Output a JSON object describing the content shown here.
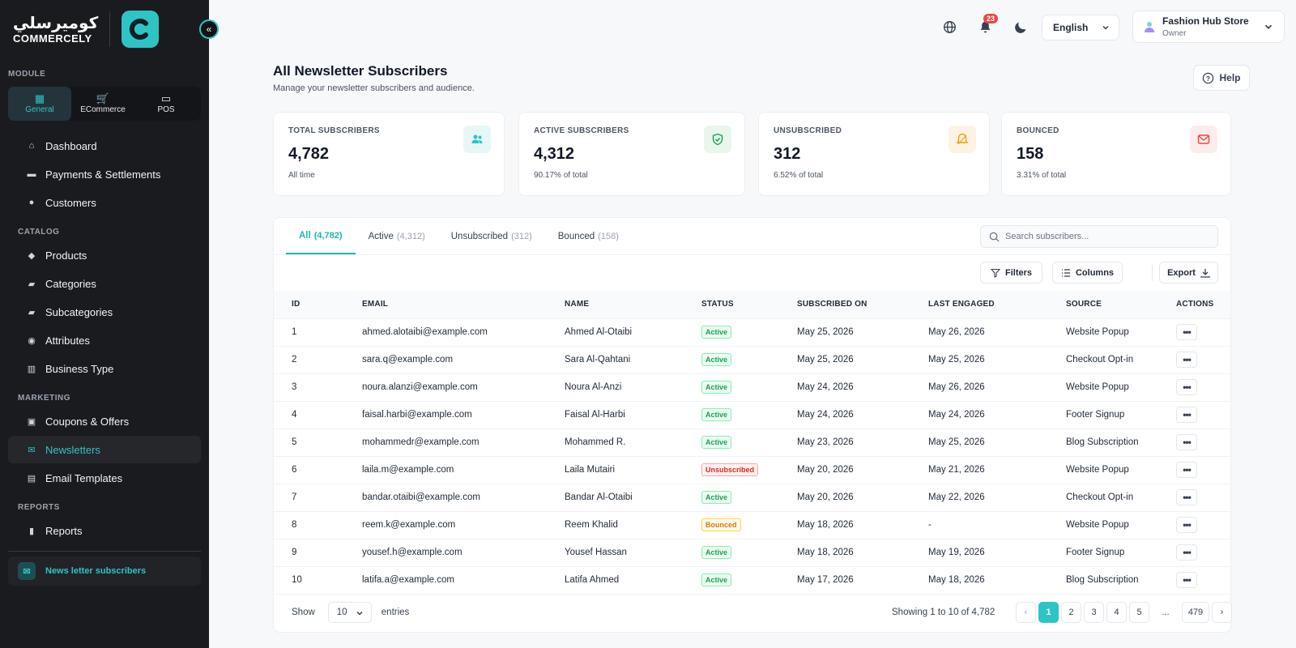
{
  "brand": {
    "arabic": "كوميرسلي",
    "name": "COMMERCELY",
    "logo_letter": "C"
  },
  "sidebar": {
    "module_label": "MODULE",
    "modules": [
      {
        "label": "General",
        "icon": "grid-icon",
        "active": true
      },
      {
        "label": "ECommerce",
        "icon": "cart-icon",
        "active": false
      },
      {
        "label": "POS",
        "icon": "register-icon",
        "active": false
      }
    ],
    "sections": [
      {
        "label": "",
        "items": [
          {
            "label": "Dashboard",
            "icon": "home-icon"
          },
          {
            "label": "Payments & Settlements",
            "icon": "card-icon"
          },
          {
            "label": "Customers",
            "icon": "user-icon"
          }
        ]
      },
      {
        "label": "CATALOG",
        "items": [
          {
            "label": "Products",
            "icon": "box-icon"
          },
          {
            "label": "Categories",
            "icon": "folder-icon"
          },
          {
            "label": "Subcategories",
            "icon": "folder-icon"
          },
          {
            "label": "Attributes",
            "icon": "attribute-icon"
          },
          {
            "label": "Business Type",
            "icon": "building-icon"
          }
        ]
      },
      {
        "label": "MARKETING",
        "items": [
          {
            "label": "Coupons & Offers",
            "icon": "gift-icon"
          },
          {
            "label": "Newsletters",
            "icon": "mail-icon",
            "active": true
          },
          {
            "label": "Email Templates",
            "icon": "template-icon"
          }
        ]
      },
      {
        "label": "REPORTS",
        "items": [
          {
            "label": "Reports",
            "icon": "bar-chart-icon"
          }
        ]
      }
    ],
    "bottom_item": "News letter subscribers"
  },
  "topbar": {
    "notification_count": "23",
    "language": "English",
    "store_name": "Fashion Hub Store",
    "store_role": "Owner"
  },
  "page": {
    "title": "All Newsletter Subscribers",
    "subtitle": "Manage your newsletter subscribers and audience.",
    "help_label": "Help"
  },
  "stats": [
    {
      "label": "TOTAL SUBSCRIBERS",
      "value": "4,782",
      "sub": "All time",
      "icon": "users-icon",
      "color": "#2ec4c4",
      "bg": "#e6f7f7"
    },
    {
      "label": "ACTIVE SUBSCRIBERS",
      "value": "4,312",
      "sub": "90.17% of total",
      "icon": "shield-check-icon",
      "color": "#16a34a",
      "bg": "#e8f6ec"
    },
    {
      "label": "UNSUBSCRIBED",
      "value": "312",
      "sub": "6.52% of total",
      "icon": "bell-off-icon",
      "color": "#f59e0b",
      "bg": "#fef3e2"
    },
    {
      "label": "BOUNCED",
      "value": "158",
      "sub": "3.31% of total",
      "icon": "envelope-icon",
      "color": "#ef4444",
      "bg": "#fdecec"
    }
  ],
  "tabs": [
    {
      "label": "All",
      "count": "(4,782)",
      "active": true
    },
    {
      "label": "Active",
      "count": "(4,312)",
      "active": false
    },
    {
      "label": "Unsubscribed",
      "count": "(312)",
      "active": false
    },
    {
      "label": "Bounced",
      "count": "(158)",
      "active": false
    }
  ],
  "search_placeholder": "Search subscribers...",
  "toolbar": {
    "filters": "Filters",
    "columns": "Columns",
    "export": "Export"
  },
  "table": {
    "headers": [
      "ID",
      "EMAIL",
      "NAME",
      "STATUS",
      "SUBSCRIBED ON",
      "LAST ENGAGED",
      "SOURCE",
      "ACTIONS"
    ],
    "rows": [
      {
        "id": "1",
        "email": "ahmed.alotaibi@example.com",
        "name": "Ahmed Al-Otaibi",
        "status": "Active",
        "subscribed": "May 25, 2026",
        "engaged": "May 26, 2026",
        "source": "Website Popup"
      },
      {
        "id": "2",
        "email": "sara.q@example.com",
        "name": "Sara Al-Qahtani",
        "status": "Active",
        "subscribed": "May 25, 2026",
        "engaged": "May 25, 2026",
        "source": "Checkout Opt-in"
      },
      {
        "id": "3",
        "email": "noura.alanzi@example.com",
        "name": "Noura Al-Anzi",
        "status": "Active",
        "subscribed": "May 24, 2026",
        "engaged": "May 26, 2026",
        "source": "Website Popup"
      },
      {
        "id": "4",
        "email": "faisal.harbi@example.com",
        "name": "Faisal Al-Harbi",
        "status": "Active",
        "subscribed": "May 24, 2026",
        "engaged": "May 24, 2026",
        "source": "Footer Signup"
      },
      {
        "id": "5",
        "email": "mohammedr@example.com",
        "name": "Mohammed R.",
        "status": "Active",
        "subscribed": "May 23, 2026",
        "engaged": "May 25, 2026",
        "source": "Blog Subscription"
      },
      {
        "id": "6",
        "email": "laila.m@example.com",
        "name": "Laila Mutairi",
        "status": "Unsubscribed",
        "subscribed": "May 20, 2026",
        "engaged": "May 21, 2026",
        "source": "Website Popup"
      },
      {
        "id": "7",
        "email": "bandar.otaibi@example.com",
        "name": "Bandar Al-Otaibi",
        "status": "Active",
        "subscribed": "May 20, 2026",
        "engaged": "May 22, 2026",
        "source": "Checkout Opt-in"
      },
      {
        "id": "8",
        "email": "reem.k@example.com",
        "name": "Reem Khalid",
        "status": "Bounced",
        "subscribed": "May 18, 2026",
        "engaged": "-",
        "source": "Website Popup"
      },
      {
        "id": "9",
        "email": "yousef.h@example.com",
        "name": "Yousef Hassan",
        "status": "Active",
        "subscribed": "May 18, 2026",
        "engaged": "May 19, 2026",
        "source": "Footer Signup"
      },
      {
        "id": "10",
        "email": "latifa.a@example.com",
        "name": "Latifa Ahmed",
        "status": "Active",
        "subscribed": "May 17, 2026",
        "engaged": "May 18, 2026",
        "source": "Blog Subscription"
      }
    ]
  },
  "footer": {
    "show_label": "Show",
    "page_size": "10",
    "entries_label": "entries",
    "showing_text": "Showing 1 to 10 of 4,782",
    "pages": [
      "1",
      "2",
      "3",
      "4",
      "5",
      "...",
      "479"
    ],
    "current_page": "1"
  }
}
